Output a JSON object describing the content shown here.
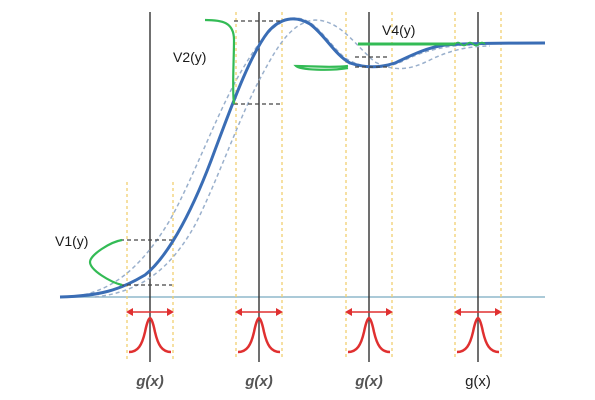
{
  "labels": {
    "v1": "V1(y)",
    "v2": "V2(y)",
    "v4": "V4(y)",
    "g1": "g(x)",
    "g2": "g(x)",
    "g3": "g(x)",
    "g4": "g(x)"
  },
  "colors": {
    "main_curve": "#3a6db5",
    "envelope": "#9ab0cc",
    "baseline": "#8fb8cc",
    "vertical_line": "#333333",
    "window_line": "#f0d070",
    "gaussian": "#e03030",
    "response": "#33bb55",
    "dashed_level": "#444444"
  }
}
